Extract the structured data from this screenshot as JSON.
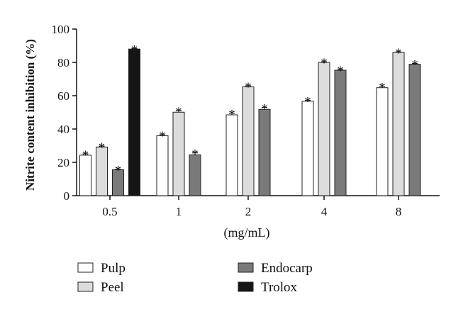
{
  "chart_data": {
    "type": "bar",
    "title": "",
    "xlabel": "(mg/mL)",
    "ylabel": "Nitrite content inhibition (%)",
    "ylim": [
      0,
      100
    ],
    "yticks": [
      "0",
      "20",
      "40",
      "60",
      "80",
      "100"
    ],
    "categories": [
      "0.5",
      "1",
      "2",
      "4",
      "8"
    ],
    "significance_marker": "*",
    "legend_placement": "bottom",
    "series": [
      {
        "name": "Pulp",
        "color": "#ffffff",
        "values": [
          24.3,
          36.0,
          48.5,
          56.7,
          64.8
        ],
        "errors": [
          0.8,
          0.6,
          1.0,
          0.6,
          0.9
        ]
      },
      {
        "name": "Peel",
        "color": "#dcdcdc",
        "values": [
          29.2,
          50.1,
          65.3,
          80.0,
          86.0
        ],
        "errors": [
          0.5,
          1.0,
          0.7,
          0.4,
          0.4
        ]
      },
      {
        "name": "Endocarp",
        "color": "#7a7a7a",
        "values": [
          15.6,
          24.5,
          51.8,
          75.3,
          78.9
        ],
        "errors": [
          0.4,
          1.2,
          1.2,
          0.4,
          0.4
        ]
      },
      {
        "name": "Trolox",
        "color": "#151515",
        "values": [
          88.0,
          null,
          null,
          null,
          null
        ],
        "errors": [
          0.4,
          null,
          null,
          null,
          null
        ]
      }
    ]
  }
}
